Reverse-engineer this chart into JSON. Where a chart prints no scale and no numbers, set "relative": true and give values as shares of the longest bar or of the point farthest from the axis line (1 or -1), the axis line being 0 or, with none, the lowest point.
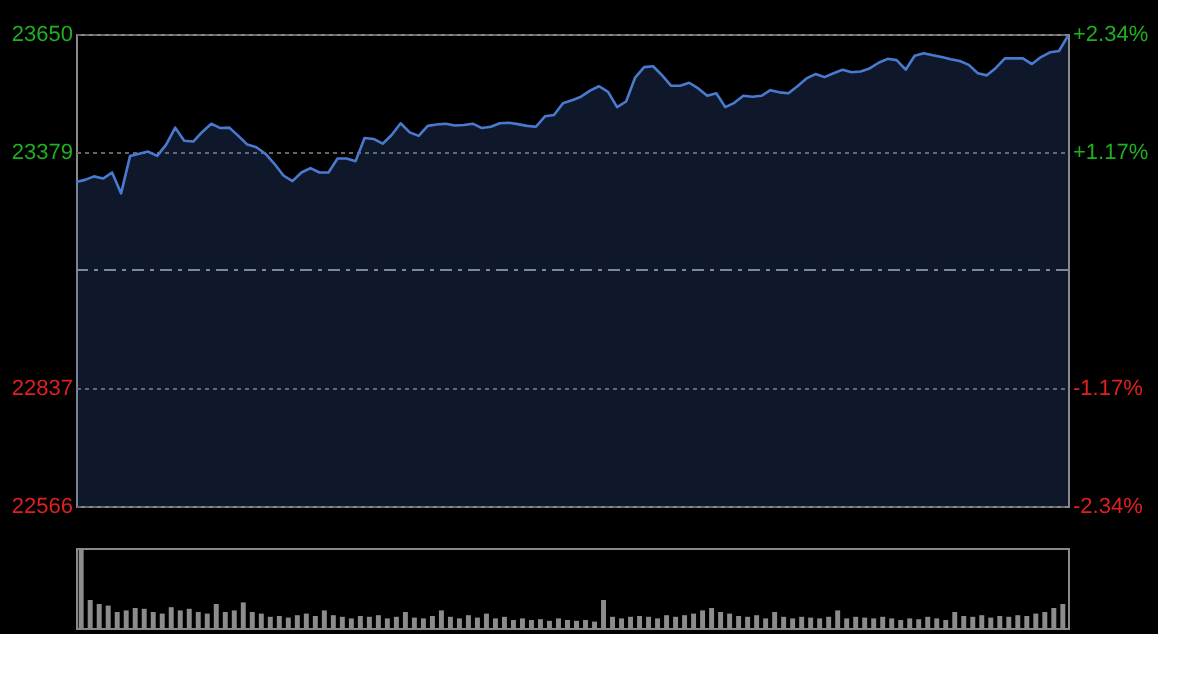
{
  "chart_data": [
    {
      "type": "area",
      "categories": [
        null,
        null,
        null,
        null,
        null,
        null,
        null,
        null,
        null,
        null,
        null,
        null,
        null,
        null,
        null,
        null,
        null,
        null,
        null,
        null,
        null,
        null,
        null,
        null,
        null,
        null,
        null,
        null,
        null,
        null,
        null,
        null,
        null,
        null,
        null,
        null,
        null,
        null,
        null,
        null,
        null,
        null,
        null,
        null,
        null,
        null,
        null,
        null,
        null,
        null,
        null,
        null,
        null,
        null,
        null,
        null,
        null,
        null,
        null,
        null,
        null,
        null,
        null,
        null,
        null,
        null,
        null,
        null,
        null,
        null,
        null,
        null,
        null,
        null,
        null,
        null,
        null,
        null,
        null,
        null,
        null,
        null,
        null,
        null,
        null,
        null,
        null,
        null,
        null,
        null,
        null,
        null,
        null,
        null,
        null,
        null,
        null,
        null,
        null,
        null,
        null,
        null,
        null,
        null,
        null,
        null,
        null,
        null,
        null,
        null,
        null
      ],
      "series": [
        {
          "color": "#4a7ad0",
          "values": [
            23310,
            23315,
            23323,
            23318,
            23332,
            23284,
            23370,
            23375,
            23380,
            23370,
            23396,
            23435,
            23405,
            23403,
            23425,
            23444,
            23434,
            23435,
            23416,
            23396,
            23390,
            23375,
            23352,
            23325,
            23312,
            23332,
            23342,
            23332,
            23332,
            23364,
            23364,
            23358,
            23411,
            23409,
            23398,
            23418,
            23445,
            23424,
            23416,
            23439,
            23442,
            23444,
            23440,
            23441,
            23444,
            23434,
            23437,
            23445,
            23446,
            23443,
            23439,
            23437,
            23461,
            23464,
            23491,
            23498,
            23506,
            23520,
            23530,
            23517,
            23482,
            23495,
            23550,
            23574,
            23576,
            23555,
            23531,
            23531,
            23538,
            23525,
            23508,
            23514,
            23482,
            23492,
            23508,
            23506,
            23508,
            23521,
            23516,
            23514,
            23530,
            23548,
            23558,
            23551,
            23560,
            23568,
            23562,
            23564,
            23571,
            23584,
            23593,
            23590,
            23568,
            23600,
            23606,
            23601,
            23597,
            23592,
            23588,
            23579,
            23560,
            23555,
            23572,
            23594,
            23594,
            23594,
            23581,
            23597,
            23608,
            23611,
            23646
          ]
        }
      ],
      "ylim": [
        22566,
        23650
      ],
      "yticks": [
        22566,
        22837,
        23379,
        23650
      ],
      "y2lim": [
        -2.34,
        2.34
      ],
      "y2ticks": [
        {
          "value": -2.34,
          "label": "-2.34%"
        },
        {
          "value": -1.17,
          "label": "-1.17%"
        },
        {
          "value": 1.17,
          "label": "+1.17%"
        },
        {
          "value": 2.34,
          "label": "+2.34%"
        }
      ],
      "ref_lines": [
        {
          "axis": "y",
          "value": 23108,
          "label": null,
          "color": "#7a8a9a",
          "line_style": "dashdot"
        }
      ],
      "grid": "y",
      "tick_labels": "y"
    },
    {
      "type": "bar",
      "relative": true,
      "categories": [
        null,
        null,
        null,
        null,
        null,
        null,
        null,
        null,
        null,
        null,
        null,
        null,
        null,
        null,
        null,
        null,
        null,
        null,
        null,
        null,
        null,
        null,
        null,
        null,
        null,
        null,
        null,
        null,
        null,
        null,
        null,
        null,
        null,
        null,
        null,
        null,
        null,
        null,
        null,
        null,
        null,
        null,
        null,
        null,
        null,
        null,
        null,
        null,
        null,
        null,
        null,
        null,
        null,
        null,
        null,
        null,
        null,
        null,
        null,
        null,
        null,
        null,
        null,
        null,
        null,
        null,
        null,
        null,
        null,
        null,
        null,
        null,
        null,
        null,
        null,
        null,
        null,
        null,
        null,
        null,
        null,
        null,
        null,
        null,
        null,
        null,
        null,
        null,
        null,
        null,
        null,
        null,
        null,
        null,
        null,
        null,
        null,
        null,
        null,
        null,
        null,
        null,
        null,
        null,
        null,
        null,
        null,
        null,
        null,
        null
      ],
      "series": [
        {
          "color": "#8c8c8c",
          "values": [
            1.0,
            0.35,
            0.3,
            0.28,
            0.2,
            0.22,
            0.25,
            0.24,
            0.2,
            0.18,
            0.26,
            0.22,
            0.24,
            0.2,
            0.18,
            0.3,
            0.2,
            0.22,
            0.32,
            0.2,
            0.18,
            0.14,
            0.15,
            0.13,
            0.16,
            0.18,
            0.15,
            0.22,
            0.16,
            0.14,
            0.12,
            0.15,
            0.14,
            0.16,
            0.12,
            0.14,
            0.2,
            0.13,
            0.12,
            0.15,
            0.22,
            0.14,
            0.12,
            0.16,
            0.13,
            0.18,
            0.12,
            0.14,
            0.1,
            0.12,
            0.1,
            0.11,
            0.09,
            0.12,
            0.1,
            0.09,
            0.1,
            0.08,
            0.35,
            0.14,
            0.12,
            0.14,
            0.15,
            0.14,
            0.12,
            0.16,
            0.14,
            0.16,
            0.18,
            0.22,
            0.25,
            0.2,
            0.18,
            0.15,
            0.14,
            0.16,
            0.12,
            0.2,
            0.14,
            0.12,
            0.14,
            0.13,
            0.12,
            0.14,
            0.22,
            0.12,
            0.14,
            0.13,
            0.12,
            0.14,
            0.12,
            0.1,
            0.12,
            0.11,
            0.14,
            0.12,
            0.1,
            0.2,
            0.15,
            0.14,
            0.16,
            0.13,
            0.15,
            0.14,
            0.16,
            0.15,
            0.18,
            0.2,
            0.25,
            0.3
          ]
        }
      ],
      "legend": false
    }
  ]
}
